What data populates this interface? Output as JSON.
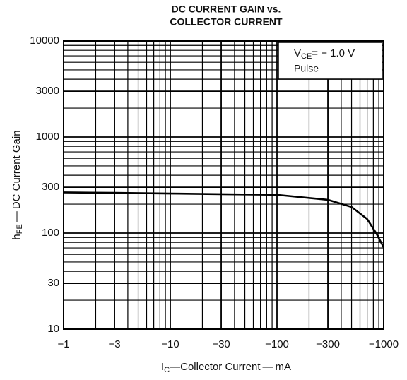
{
  "chart_data": {
    "type": "line",
    "title": [
      "DC CURRENT GAIN vs.",
      "COLLECTOR CURRENT"
    ],
    "xlabel": {
      "main": "I",
      "sub": "C",
      "rest": "—Collector Current — mA"
    },
    "ylabel": {
      "main": "h",
      "sub": "FE",
      "rest": " — DC Current Gain"
    },
    "annotation": {
      "main": "V",
      "sub": "CE",
      "rest": "= − 1.0 V",
      "line2": "Pulse"
    },
    "x": [
      -1,
      -3,
      -10,
      -30,
      -100,
      -300,
      -500,
      -700,
      -850,
      -1000
    ],
    "series": [
      {
        "name": "hFE",
        "color": "#000000",
        "values": [
          265,
          262,
          258,
          254,
          250,
          222,
          187,
          140,
          100,
          71
        ]
      }
    ],
    "xlim": [
      -1,
      -1000
    ],
    "xticks": [
      {
        "value": -1,
        "label": "−1"
      },
      {
        "value": -3,
        "label": "−3"
      },
      {
        "value": -10,
        "label": "−10"
      },
      {
        "value": -30,
        "label": "−30"
      },
      {
        "value": -100,
        "label": "−100"
      },
      {
        "value": -300,
        "label": "−300"
      },
      {
        "value": -1000,
        "label": "−1000"
      }
    ],
    "ylim": [
      10,
      10000
    ],
    "yticks": [
      10,
      30,
      100,
      300,
      1000,
      3000,
      10000
    ],
    "xlog": true,
    "ylog": true,
    "grid": true,
    "minor_grid": true
  }
}
